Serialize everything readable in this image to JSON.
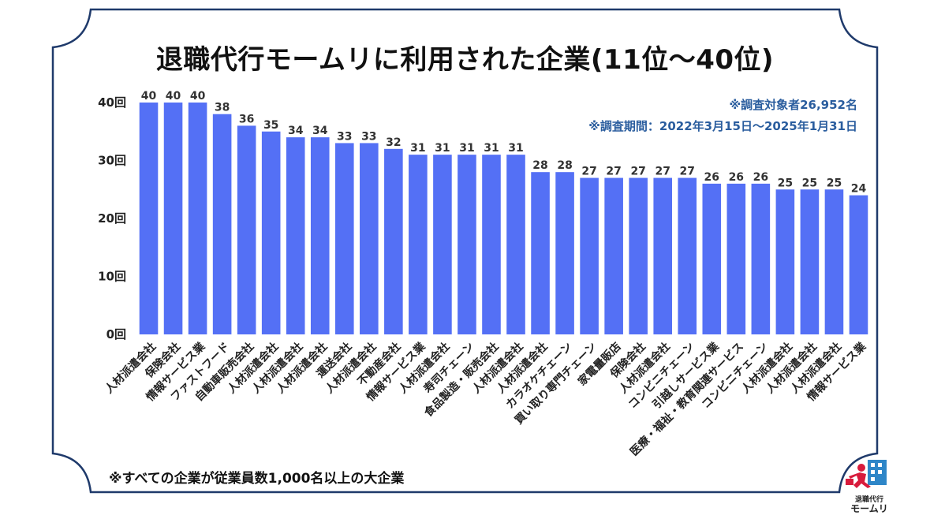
{
  "title": "退職代行モームリに利用された企業(11位〜40位)",
  "notes": {
    "survey_count": "※調査対象者26,952名",
    "survey_period": "※調査期間：2022年3月15日〜2025年1月31日"
  },
  "footnote": "※すべての企業が従業員数1,000名以上の大企業",
  "logo": {
    "line1": "退職代行",
    "line2": "モームリ",
    "icon": "person-running-with-briefcase-icon"
  },
  "colors": {
    "bar": "#5470f5",
    "frame": "#1f3a6b",
    "note": "#2a5d9e"
  },
  "chart_data": {
    "type": "bar",
    "title": "退職代行モームリに利用された企業(11位〜40位)",
    "y_ticks": [
      "0回",
      "10回",
      "20回",
      "30回",
      "40回"
    ],
    "ylim": [
      0,
      40
    ],
    "grid": false,
    "categories": [
      "人材派遣会社",
      "保険会社",
      "情報サービス業",
      "ファストフード",
      "自動車販売会社",
      "人材派遣会社",
      "人材派遣会社",
      "人材派遣会社",
      "運送会社",
      "人材派遣会社",
      "不動産会社",
      "情報サービス業",
      "人材派遣会社",
      "寿司チェーン",
      "食品製造・販売会社",
      "人材派遣会社",
      "人材派遣会社",
      "カラオケチェーン",
      "買い取り専門チェーン",
      "家電量販店",
      "保険会社",
      "人材派遣会社",
      "コンビニチェーン",
      "引越しサービス業",
      "医療・福祉・教育関連サービス",
      "コンビニチェーン",
      "人材派遣会社",
      "人材派遣会社",
      "人材派遣会社",
      "情報サービス業"
    ],
    "values": [
      40,
      40,
      40,
      38,
      36,
      35,
      34,
      34,
      33,
      33,
      32,
      31,
      31,
      31,
      31,
      31,
      28,
      28,
      27,
      27,
      27,
      27,
      27,
      26,
      26,
      26,
      25,
      25,
      25,
      24
    ]
  }
}
